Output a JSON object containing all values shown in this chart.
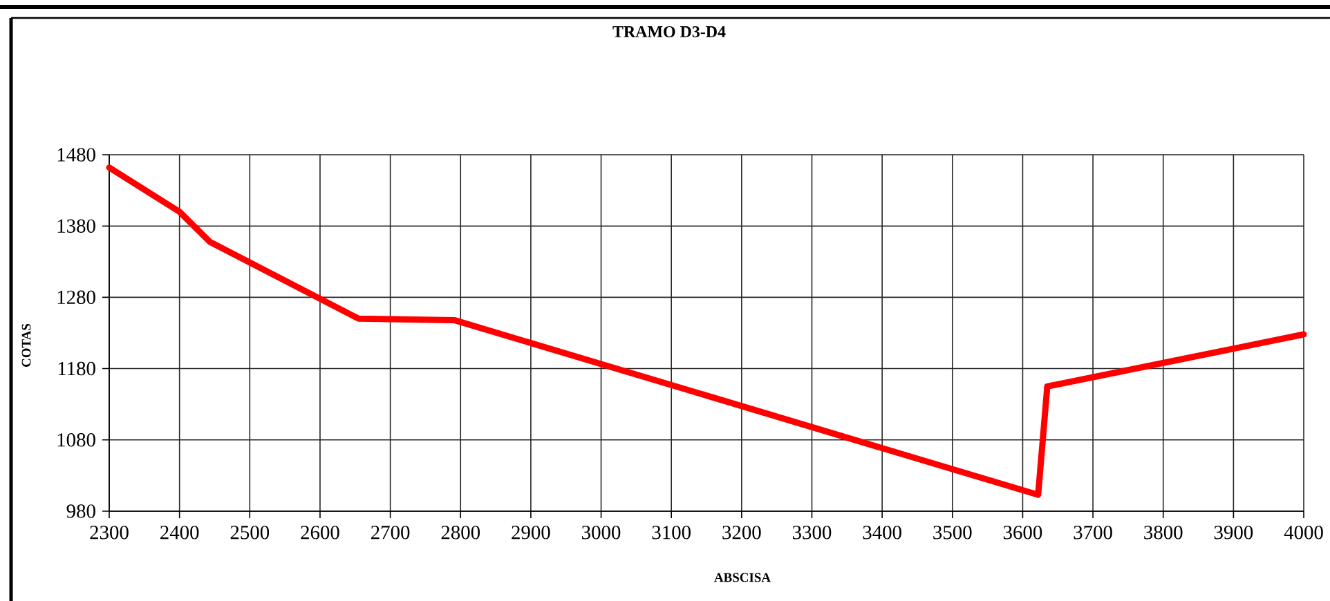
{
  "chart_data": {
    "type": "line",
    "title": "TRAMO D3-D4",
    "xlabel": "ABSCISA",
    "ylabel": "COTAS",
    "x": [
      2300,
      2400,
      2443,
      2655,
      2791,
      3622,
      3635,
      4000
    ],
    "series": [
      {
        "color": "#ff0000",
        "values": [
          1462,
          1400,
          1358,
          1250,
          1248,
          1003,
          1155,
          1228
        ]
      }
    ],
    "xlim": [
      2300,
      4000
    ],
    "ylim": [
      980,
      1480
    ],
    "xticks": [
      2300,
      2400,
      2500,
      2600,
      2700,
      2800,
      2900,
      3000,
      3100,
      3200,
      3300,
      3400,
      3500,
      3600,
      3700,
      3800,
      3900,
      4000
    ],
    "yticks": [
      980,
      1080,
      1180,
      1280,
      1380,
      1480
    ],
    "grid": true,
    "legend": false,
    "marker": "none",
    "line_style": "solid"
  }
}
